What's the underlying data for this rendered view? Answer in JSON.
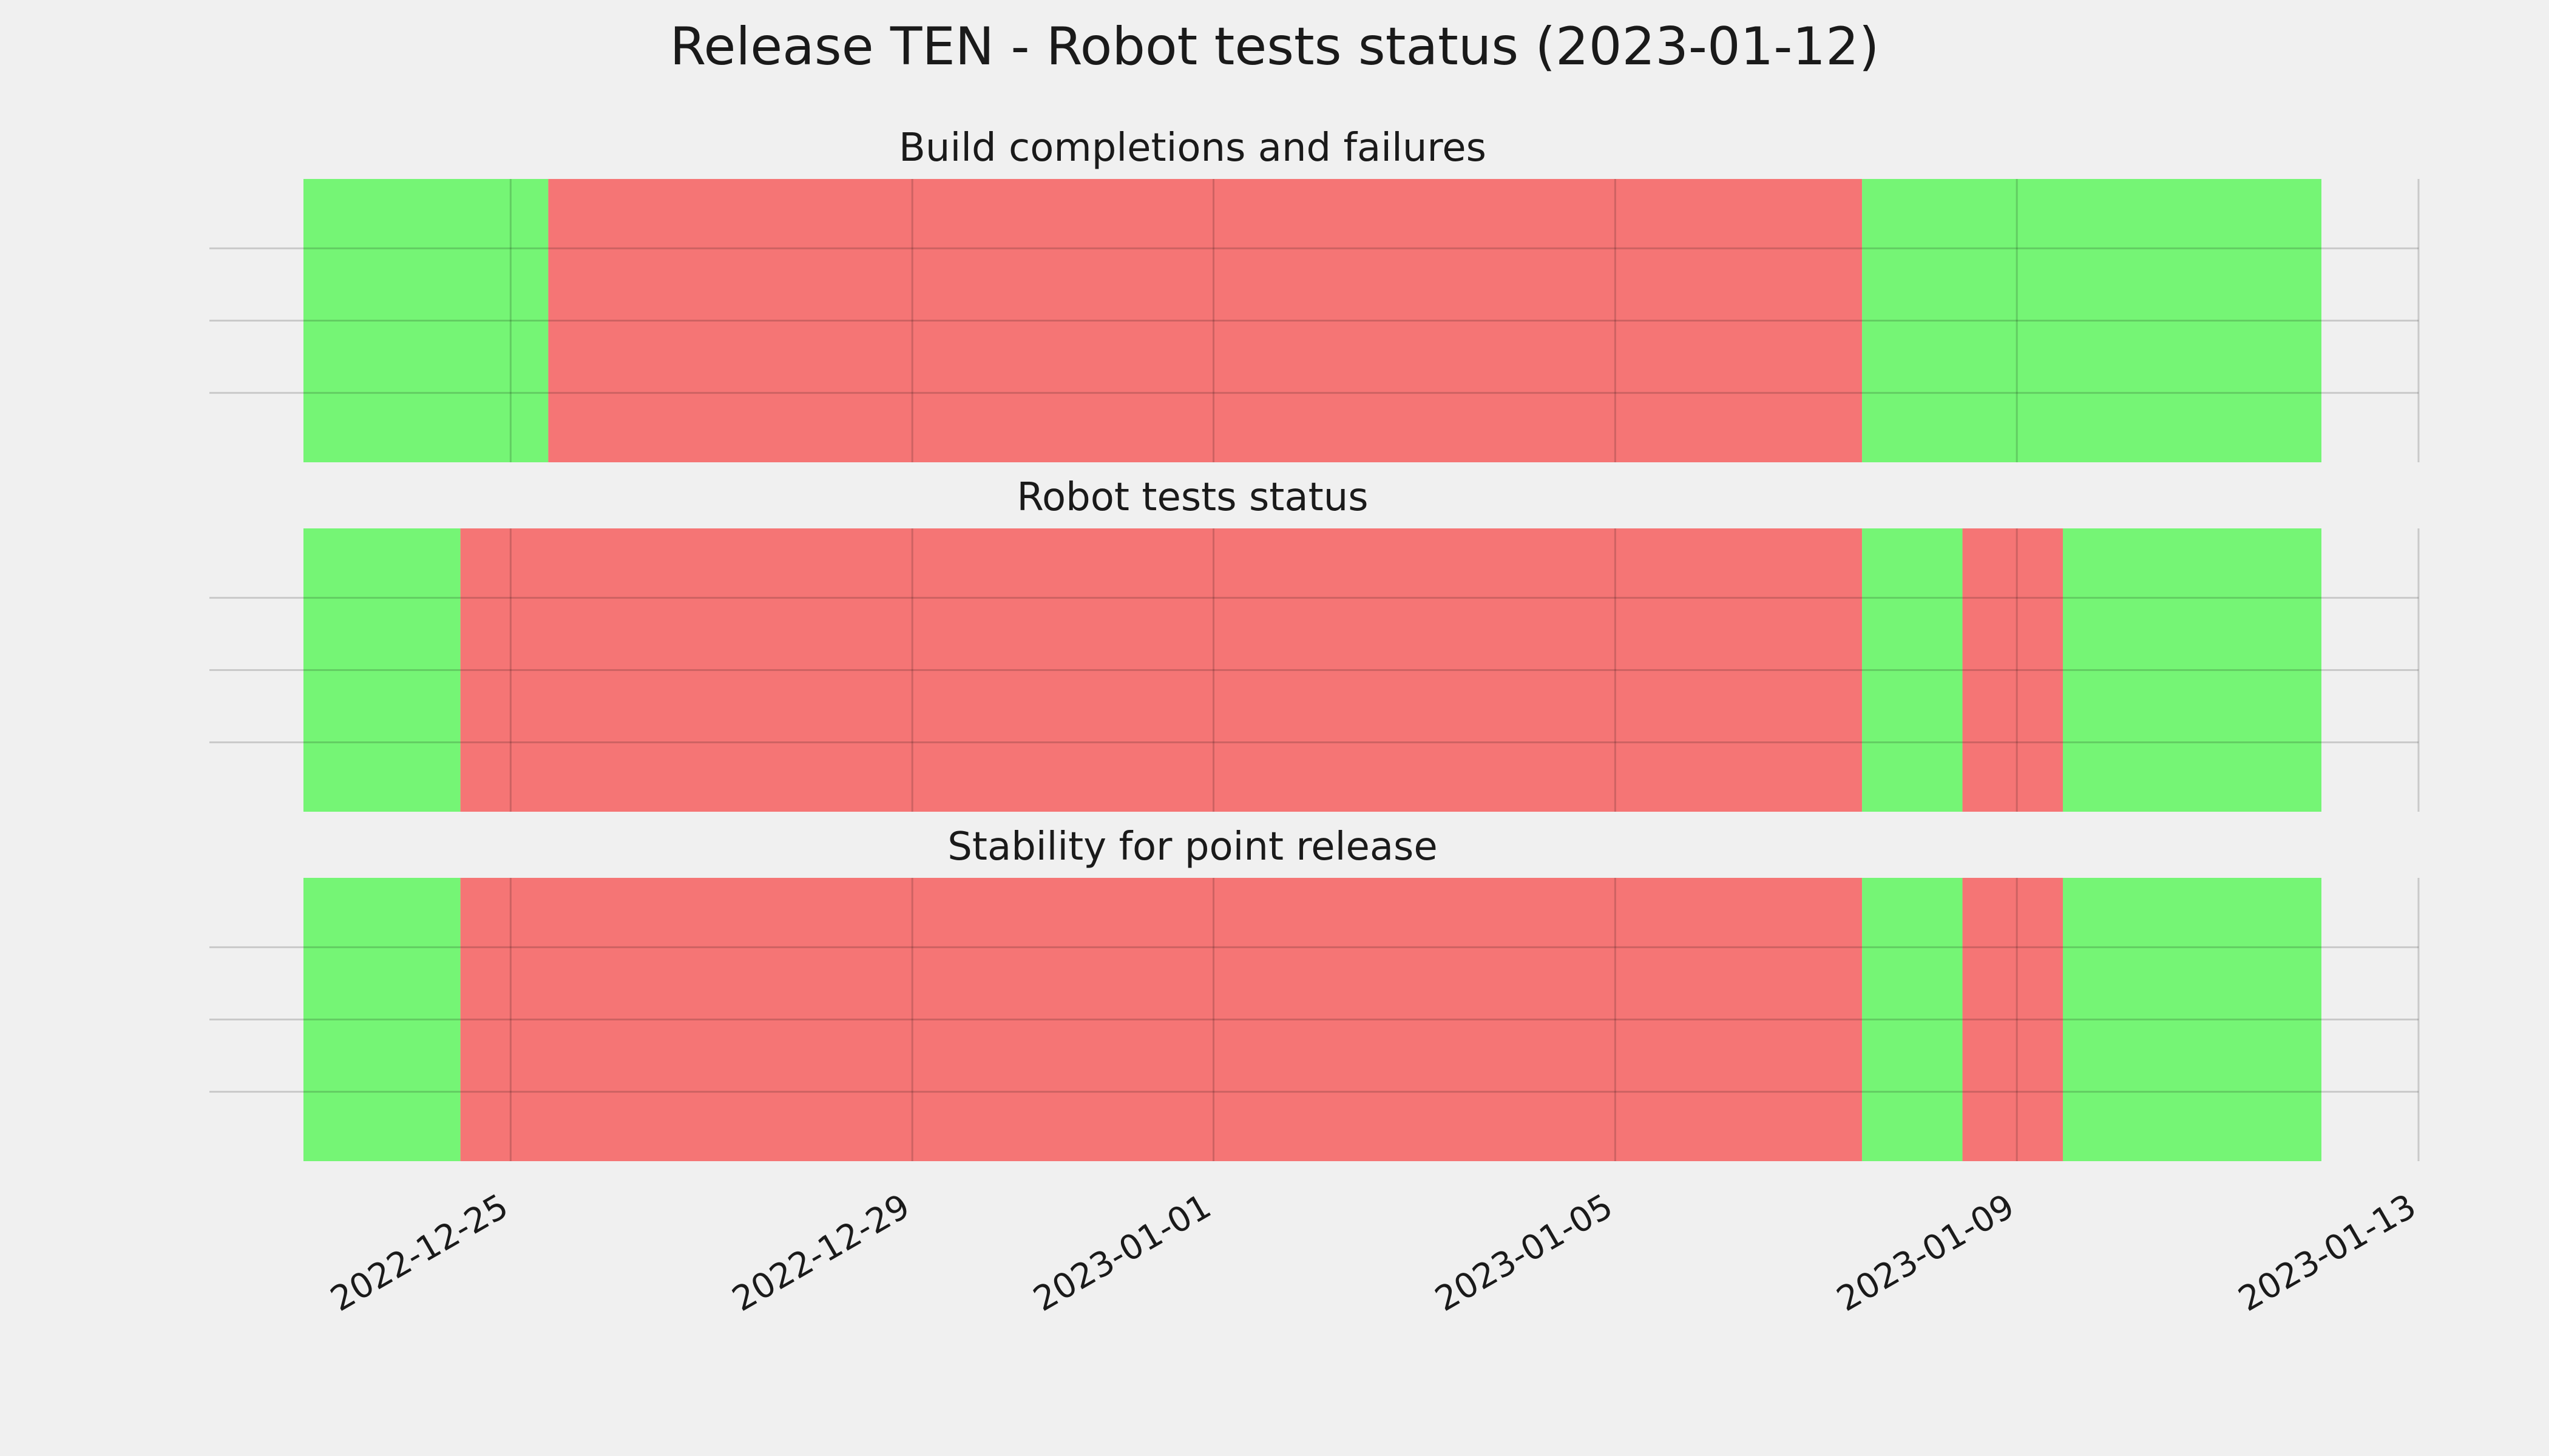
{
  "title": "Release TEN - Robot tests status (2023-01-12)",
  "colors": {
    "background": "#f0f0f0",
    "pass": "#75f575",
    "fail": "#f57575",
    "grid": "#c8c8c8"
  },
  "chart_data": [
    {
      "type": "timeline",
      "title": "Build completions and failures",
      "xlim": [
        "2022-12-22",
        "2023-01-13"
      ],
      "grid": true,
      "segments": [
        {
          "start": "2022-12-22T12:00",
          "end": "2022-12-25T09:00",
          "status": "pass"
        },
        {
          "start": "2022-12-25T09:00",
          "end": "2023-01-07T11:00",
          "status": "fail"
        },
        {
          "start": "2023-01-07T11:00",
          "end": "2023-01-12T22:00",
          "status": "pass"
        }
      ],
      "x_ticks": [
        "2022-12-25",
        "2022-12-29",
        "2023-01-01",
        "2023-01-05",
        "2023-01-09",
        "2023-01-13"
      ]
    },
    {
      "type": "timeline",
      "title": "Robot tests status",
      "xlim": [
        "2022-12-22",
        "2023-01-13"
      ],
      "grid": true,
      "segments": [
        {
          "start": "2022-12-22T12:00",
          "end": "2022-12-24T12:00",
          "status": "pass"
        },
        {
          "start": "2022-12-24T12:00",
          "end": "2023-01-07T11:00",
          "status": "fail"
        },
        {
          "start": "2023-01-07T11:00",
          "end": "2023-01-08T11:00",
          "status": "pass"
        },
        {
          "start": "2023-01-08T11:00",
          "end": "2023-01-09T11:00",
          "status": "fail"
        },
        {
          "start": "2023-01-09T11:00",
          "end": "2023-01-12T22:00",
          "status": "pass"
        }
      ],
      "x_ticks": [
        "2022-12-25",
        "2022-12-29",
        "2023-01-01",
        "2023-01-05",
        "2023-01-09",
        "2023-01-13"
      ]
    },
    {
      "type": "timeline",
      "title": "Stability for point release",
      "xlim": [
        "2022-12-22",
        "2023-01-13"
      ],
      "grid": true,
      "segments": [
        {
          "start": "2022-12-22T12:00",
          "end": "2022-12-24T12:00",
          "status": "pass"
        },
        {
          "start": "2022-12-24T12:00",
          "end": "2023-01-07T11:00",
          "status": "fail"
        },
        {
          "start": "2023-01-07T11:00",
          "end": "2023-01-08T11:00",
          "status": "pass"
        },
        {
          "start": "2023-01-08T11:00",
          "end": "2023-01-09T11:00",
          "status": "fail"
        },
        {
          "start": "2023-01-09T11:00",
          "end": "2023-01-12T22:00",
          "status": "pass"
        }
      ],
      "x_ticks": [
        "2022-12-25",
        "2022-12-29",
        "2023-01-01",
        "2023-01-05",
        "2023-01-09",
        "2023-01-13"
      ]
    }
  ]
}
